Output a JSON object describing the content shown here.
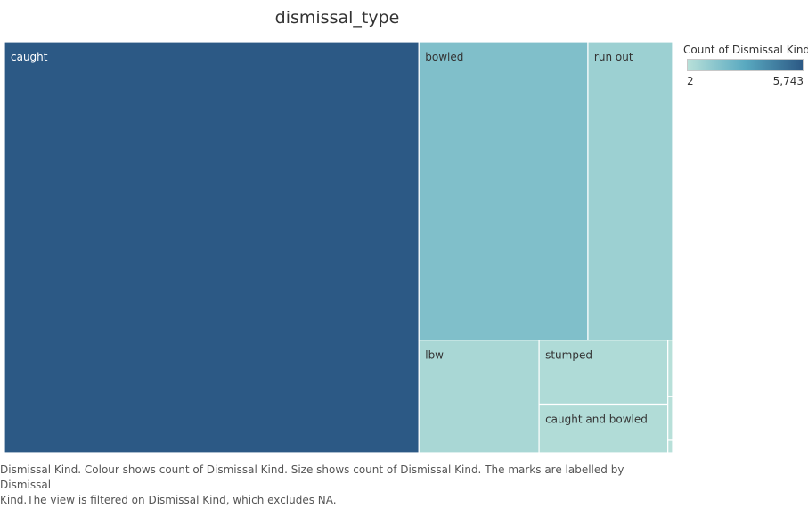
{
  "chart_data": {
    "type": "treemap",
    "title": "dismissal_type",
    "items": [
      {
        "label": "caught",
        "value": 5743
      },
      {
        "label": "bowled",
        "value": 1700
      },
      {
        "label": "run out",
        "value": 852
      },
      {
        "label": "lbw",
        "value": 456
      },
      {
        "label": "stumped",
        "value": 278
      },
      {
        "label": "caught and bowled",
        "value": 211
      },
      {
        "label": "",
        "value": 9
      },
      {
        "label": "",
        "value": 7
      },
      {
        "label": "",
        "value": 2
      }
    ],
    "legend": {
      "title": "Count of Dismissal Kind",
      "min_label": "2",
      "max_label": "5,743",
      "min_value": 2,
      "max_value": 5743,
      "color_low": "#b8e0d9",
      "color_mid": "#59a9c0",
      "color_high": "#2c5985"
    }
  },
  "caption": {
    "line1": "Dismissal Kind.  Colour shows count of Dismissal Kind.  Size shows count of Dismissal Kind.  The marks are labelled by Dismissal",
    "line2": "Kind.The view is filtered on Dismissal Kind, which excludes NA."
  }
}
